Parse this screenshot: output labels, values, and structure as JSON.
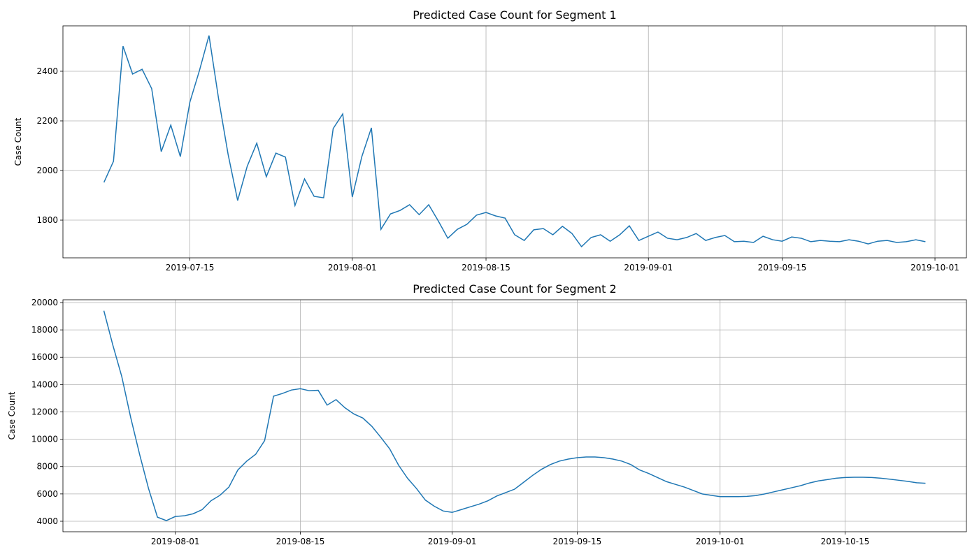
{
  "chart_data": [
    {
      "type": "line",
      "title": "Predicted Case Count for Segment 1",
      "ylabel": "Case Count",
      "color": "#1f77b4",
      "grid": true,
      "x": [
        "2019-07-06",
        "2019-07-07",
        "2019-07-08",
        "2019-07-09",
        "2019-07-10",
        "2019-07-11",
        "2019-07-12",
        "2019-07-13",
        "2019-07-14",
        "2019-07-15",
        "2019-07-16",
        "2019-07-17",
        "2019-07-18",
        "2019-07-19",
        "2019-07-20",
        "2019-07-21",
        "2019-07-22",
        "2019-07-23",
        "2019-07-24",
        "2019-07-25",
        "2019-07-26",
        "2019-07-27",
        "2019-07-28",
        "2019-07-29",
        "2019-07-30",
        "2019-07-31",
        "2019-08-01",
        "2019-08-02",
        "2019-08-03",
        "2019-08-04",
        "2019-08-05",
        "2019-08-06",
        "2019-08-07",
        "2019-08-08",
        "2019-08-09",
        "2019-08-10",
        "2019-08-11",
        "2019-08-12",
        "2019-08-13",
        "2019-08-14",
        "2019-08-15",
        "2019-08-16",
        "2019-08-17",
        "2019-08-18",
        "2019-08-19",
        "2019-08-20",
        "2019-08-21",
        "2019-08-22",
        "2019-08-23",
        "2019-08-24",
        "2019-08-25",
        "2019-08-26",
        "2019-08-27",
        "2019-08-28",
        "2019-08-29",
        "2019-08-30",
        "2019-08-31",
        "2019-09-01",
        "2019-09-02",
        "2019-09-03",
        "2019-09-04",
        "2019-09-05",
        "2019-09-06",
        "2019-09-07",
        "2019-09-08",
        "2019-09-09",
        "2019-09-10",
        "2019-09-11",
        "2019-09-12",
        "2019-09-13",
        "2019-09-14",
        "2019-09-15",
        "2019-09-16",
        "2019-09-17",
        "2019-09-18",
        "2019-09-19",
        "2019-09-20",
        "2019-09-21",
        "2019-09-22",
        "2019-09-23",
        "2019-09-24",
        "2019-09-25",
        "2019-09-26",
        "2019-09-27",
        "2019-09-28",
        "2019-09-29",
        "2019-09-30"
      ],
      "values": [
        1952,
        2037,
        2501,
        2389,
        2408,
        2330,
        2076,
        2183,
        2056,
        2276,
        2403,
        2544,
        2290,
        2065,
        1879,
        2017,
        2110,
        1975,
        2070,
        2054,
        1859,
        1966,
        1896,
        1890,
        2169,
        2228,
        1893,
        2056,
        2172,
        1763,
        1825,
        1839,
        1862,
        1822,
        1862,
        1797,
        1727,
        1763,
        1783,
        1820,
        1831,
        1817,
        1808,
        1741,
        1718,
        1761,
        1766,
        1741,
        1775,
        1746,
        1693,
        1730,
        1741,
        1715,
        1741,
        1777,
        1718,
        1735,
        1752,
        1727,
        1721,
        1730,
        1746,
        1718,
        1730,
        1738,
        1713,
        1715,
        1710,
        1735,
        1721,
        1715,
        1732,
        1727,
        1713,
        1718,
        1715,
        1713,
        1721,
        1715,
        1704,
        1715,
        1718,
        1710,
        1713,
        1721,
        1713
      ],
      "xlim": [
        "2019-07-01T17:00",
        "2019-10-04T07:00"
      ],
      "xticks": [
        "2019-07-15",
        "2019-08-01",
        "2019-08-15",
        "2019-09-01",
        "2019-09-15",
        "2019-10-01"
      ],
      "ylim": [
        1648,
        2583
      ],
      "yticks": [
        1800,
        2000,
        2200,
        2400
      ]
    },
    {
      "type": "line",
      "title": "Predicted Case Count for Segment 2",
      "ylabel": "Case Count",
      "color": "#1f77b4",
      "grid": true,
      "x": [
        "2019-07-24",
        "2019-07-25",
        "2019-07-26",
        "2019-07-27",
        "2019-07-28",
        "2019-07-29",
        "2019-07-30",
        "2019-07-31",
        "2019-08-01",
        "2019-08-02",
        "2019-08-03",
        "2019-08-04",
        "2019-08-05",
        "2019-08-06",
        "2019-08-07",
        "2019-08-08",
        "2019-08-09",
        "2019-08-10",
        "2019-08-11",
        "2019-08-12",
        "2019-08-13",
        "2019-08-14",
        "2019-08-15",
        "2019-08-16",
        "2019-08-17",
        "2019-08-18",
        "2019-08-19",
        "2019-08-20",
        "2019-08-21",
        "2019-08-22",
        "2019-08-23",
        "2019-08-24",
        "2019-08-25",
        "2019-08-26",
        "2019-08-27",
        "2019-08-28",
        "2019-08-29",
        "2019-08-30",
        "2019-08-31",
        "2019-09-01",
        "2019-09-02",
        "2019-09-03",
        "2019-09-04",
        "2019-09-05",
        "2019-09-06",
        "2019-09-07",
        "2019-09-08",
        "2019-09-09",
        "2019-09-10",
        "2019-09-11",
        "2019-09-12",
        "2019-09-13",
        "2019-09-14",
        "2019-09-15",
        "2019-09-16",
        "2019-09-17",
        "2019-09-18",
        "2019-09-19",
        "2019-09-20",
        "2019-09-21",
        "2019-09-22",
        "2019-09-23",
        "2019-09-24",
        "2019-09-25",
        "2019-09-26",
        "2019-09-27",
        "2019-09-28",
        "2019-09-29",
        "2019-09-30",
        "2019-10-01",
        "2019-10-02",
        "2019-10-03",
        "2019-10-04",
        "2019-10-05",
        "2019-10-06",
        "2019-10-07",
        "2019-10-08",
        "2019-10-09",
        "2019-10-10",
        "2019-10-11",
        "2019-10-12",
        "2019-10-13",
        "2019-10-14",
        "2019-10-15",
        "2019-10-16",
        "2019-10-17",
        "2019-10-18",
        "2019-10-19",
        "2019-10-20",
        "2019-10-21",
        "2019-10-22",
        "2019-10-23",
        "2019-10-24"
      ],
      "values": [
        19400,
        16900,
        14600,
        11600,
        8900,
        6400,
        4300,
        4050,
        4350,
        4400,
        4550,
        4850,
        5500,
        5900,
        6500,
        7750,
        8400,
        8900,
        9900,
        13150,
        13350,
        13600,
        13700,
        13550,
        13580,
        12500,
        12900,
        12300,
        11850,
        11550,
        10950,
        10150,
        9300,
        8100,
        7150,
        6400,
        5550,
        5100,
        4750,
        4650,
        4850,
        5050,
        5250,
        5500,
        5850,
        6100,
        6350,
        6850,
        7350,
        7800,
        8150,
        8400,
        8550,
        8650,
        8700,
        8700,
        8650,
        8550,
        8400,
        8150,
        7750,
        7500,
        7200,
        6900,
        6700,
        6500,
        6250,
        6000,
        5900,
        5800,
        5800,
        5800,
        5820,
        5880,
        6000,
        6150,
        6300,
        6450,
        6600,
        6800,
        6950,
        7050,
        7150,
        7200,
        7220,
        7220,
        7200,
        7150,
        7080,
        7000,
        6920,
        6820,
        6780
      ],
      "xlim": [
        "2019-07-19T10:00",
        "2019-10-28T14:00"
      ],
      "xticks": [
        "2019-08-01",
        "2019-08-15",
        "2019-09-01",
        "2019-09-15",
        "2019-10-01",
        "2019-10-15"
      ],
      "ylim": [
        3233,
        20204
      ],
      "yticks": [
        4000,
        6000,
        8000,
        10000,
        12000,
        14000,
        16000,
        18000,
        20000
      ]
    }
  ]
}
